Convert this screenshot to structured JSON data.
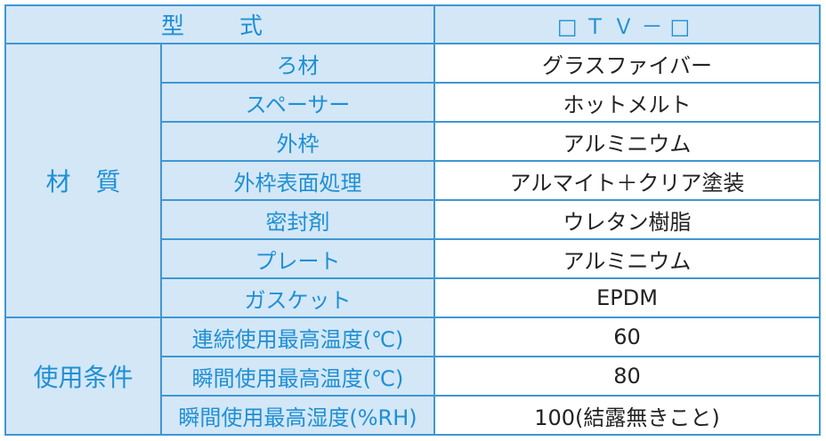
{
  "header": {
    "model_label": "型　式",
    "model_value": "□ＴＶ－□"
  },
  "groups": [
    {
      "category": "材　質",
      "rows": [
        {
          "label": "ろ材",
          "value": "グラスファイバー"
        },
        {
          "label": "スペーサー",
          "value": "ホットメルト"
        },
        {
          "label": "外枠",
          "value": "アルミニウム"
        },
        {
          "label": "外枠表面処理",
          "value": "アルマイト＋クリア塗装"
        },
        {
          "label": "密封剤",
          "value": "ウレタン樹脂"
        },
        {
          "label": "プレート",
          "value": "アルミニウム"
        },
        {
          "label": "ガスケット",
          "value": "EPDM"
        }
      ]
    },
    {
      "category": "使用条件",
      "rows": [
        {
          "label": "連続使用最高温度(℃)",
          "value": "60"
        },
        {
          "label": "瞬間使用最高温度(℃)",
          "value": "80"
        },
        {
          "label": "瞬間使用最高湿度(%RH)",
          "value": "100(結露無きこと)"
        }
      ]
    }
  ],
  "colors": {
    "border": "#3f97d3",
    "header_bg": "#d3e7f7",
    "header_text": "#1f8fd3",
    "value_text": "#222222"
  }
}
